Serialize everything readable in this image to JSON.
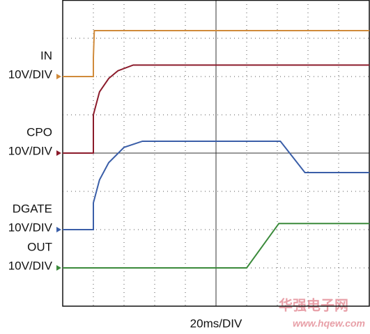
{
  "chart_data": {
    "type": "line",
    "x_label": "20ms/DIV",
    "xlim": [
      0,
      10
    ],
    "ylim": [
      0,
      8
    ],
    "xticks": [
      0,
      1,
      2,
      3,
      4,
      5,
      6,
      7,
      8,
      9,
      10
    ],
    "yticks": [
      0,
      1,
      2,
      3,
      4,
      5,
      6,
      7,
      8
    ],
    "grid": true,
    "series": [
      {
        "name": "IN",
        "scale": "10V/DIV",
        "color": "#d08a3a",
        "ground": 6,
        "x": [
          0,
          1,
          1,
          1.03,
          10
        ],
        "values": [
          6,
          6,
          6.5,
          7.2,
          7.2
        ]
      },
      {
        "name": "CPO",
        "scale": "10V/DIV",
        "color": "#8b1a2a",
        "ground": 4,
        "x": [
          0,
          1,
          1,
          1.2,
          1.5,
          1.8,
          2.3,
          10
        ],
        "values": [
          4,
          4,
          5,
          5.6,
          5.95,
          6.15,
          6.3,
          6.3
        ]
      },
      {
        "name": "DGATE",
        "scale": "10V/DIV",
        "color": "#3a5ea8",
        "ground": 2,
        "x": [
          0,
          1,
          1,
          1.2,
          1.5,
          2,
          2.6,
          7.1,
          7.9,
          10
        ],
        "values": [
          2,
          2,
          2.7,
          3.3,
          3.75,
          4.15,
          4.31,
          4.31,
          3.49,
          3.49
        ]
      },
      {
        "name": "OUT",
        "scale": "10V/DIV",
        "color": "#3a8a3a",
        "ground": 1,
        "x": [
          0,
          6,
          7.05,
          10
        ],
        "values": [
          1,
          1,
          2.16,
          2.16
        ]
      }
    ],
    "watermark": {
      "title": "华强电子网",
      "url": "www.hqew.com"
    }
  }
}
